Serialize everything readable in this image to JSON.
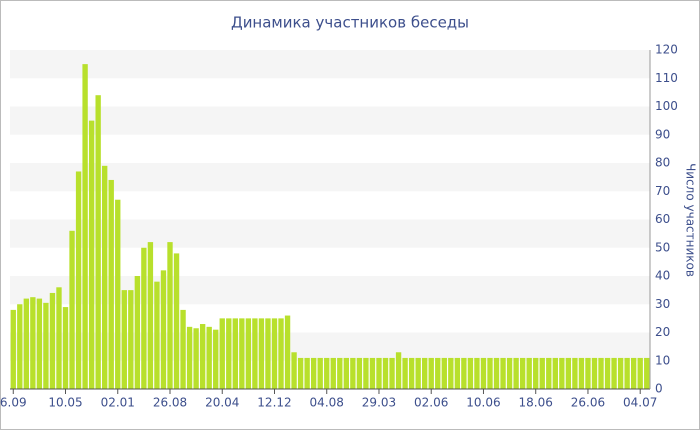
{
  "chart_data": {
    "type": "bar",
    "title": "Динамика участников беседы",
    "y_label": "Число участников",
    "categories": [
      "6.09",
      null,
      null,
      null,
      null,
      null,
      null,
      null,
      "10.05",
      null,
      null,
      null,
      null,
      null,
      null,
      null,
      "02.01",
      null,
      null,
      null,
      null,
      null,
      null,
      null,
      "26.08",
      null,
      null,
      null,
      null,
      null,
      null,
      null,
      "20.04",
      null,
      null,
      null,
      null,
      null,
      null,
      null,
      "12.12",
      null,
      null,
      null,
      null,
      null,
      null,
      null,
      "04.08",
      null,
      null,
      null,
      null,
      null,
      null,
      null,
      "29.03",
      null,
      null,
      null,
      null,
      null,
      null,
      null,
      "02.06",
      null,
      null,
      null,
      null,
      null,
      null,
      null,
      "10.06",
      null,
      null,
      null,
      null,
      null,
      null,
      null,
      "18.06",
      null,
      null,
      null,
      null,
      null,
      null,
      null,
      "26.06",
      null,
      null,
      null,
      null,
      null,
      null,
      null,
      "04.07",
      null
    ],
    "values": [
      28,
      30,
      32,
      32.5,
      32,
      30.5,
      34,
      36,
      29,
      56,
      77,
      115,
      95,
      104,
      79,
      74,
      67,
      35,
      35,
      40,
      50,
      52,
      38,
      42,
      52,
      48,
      28,
      22,
      21.5,
      23,
      22,
      21,
      25,
      25,
      25,
      25,
      25,
      25,
      25,
      25,
      25,
      25,
      26,
      13,
      11,
      11,
      11,
      11,
      11,
      11,
      11,
      11,
      11,
      11,
      11,
      11,
      11,
      11,
      11,
      13,
      11,
      11,
      11,
      11,
      11,
      11,
      11,
      11,
      11,
      11,
      11,
      11,
      11,
      11,
      11,
      11,
      11,
      11,
      11,
      11,
      11,
      11,
      11,
      11,
      11,
      11,
      11,
      11,
      11,
      11,
      11,
      11,
      11,
      11,
      11,
      11,
      11,
      11
    ],
    "color": "#b8e02c",
    "ylim": [
      0,
      120
    ],
    "yticks": [
      0,
      10,
      20,
      30,
      40,
      50,
      60,
      70,
      80,
      90,
      100,
      110,
      120
    ],
    "grid": true
  }
}
